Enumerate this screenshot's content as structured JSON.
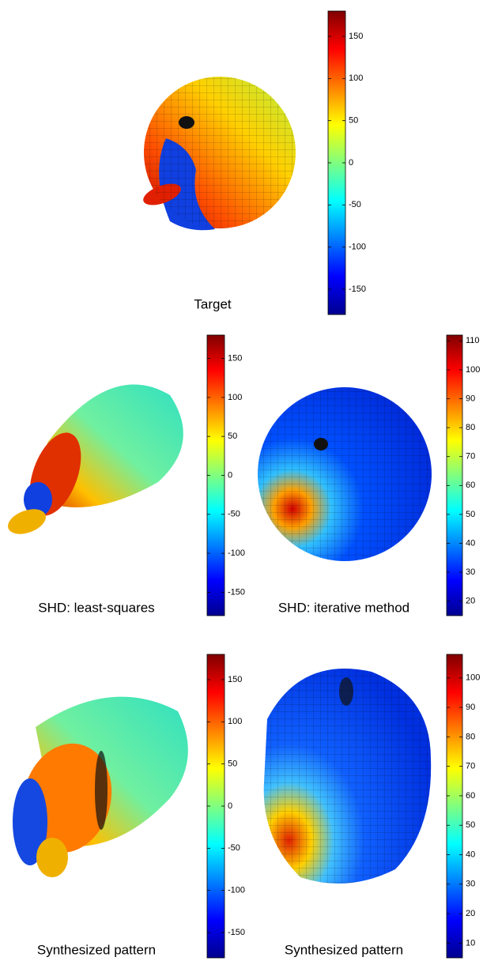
{
  "chart_data": [
    {
      "type": "surface",
      "title": "Target",
      "colormap": "jet",
      "clim": [
        -180,
        180
      ],
      "ticks": [
        150,
        100,
        50,
        0,
        -50,
        -100,
        -150
      ]
    },
    {
      "type": "surface",
      "title": "SHD: least-squares",
      "colormap": "jet",
      "clim": [
        -180,
        180
      ],
      "ticks": [
        150,
        100,
        50,
        0,
        -50,
        -100,
        -150
      ]
    },
    {
      "type": "surface",
      "title": "SHD: iterative method",
      "colormap": "jet",
      "clim": [
        15,
        112
      ],
      "ticks": [
        110,
        100,
        90,
        80,
        70,
        60,
        50,
        40,
        30,
        20
      ]
    },
    {
      "type": "surface",
      "title": "Synthesized pattern",
      "colormap": "jet",
      "clim": [
        -180,
        180
      ],
      "ticks": [
        150,
        100,
        50,
        0,
        -50,
        -100,
        -150
      ]
    },
    {
      "type": "surface",
      "title": "Synthesized pattern",
      "colormap": "jet",
      "clim": [
        5,
        108
      ],
      "ticks": [
        100,
        90,
        80,
        70,
        60,
        50,
        40,
        30,
        20,
        10
      ]
    }
  ]
}
